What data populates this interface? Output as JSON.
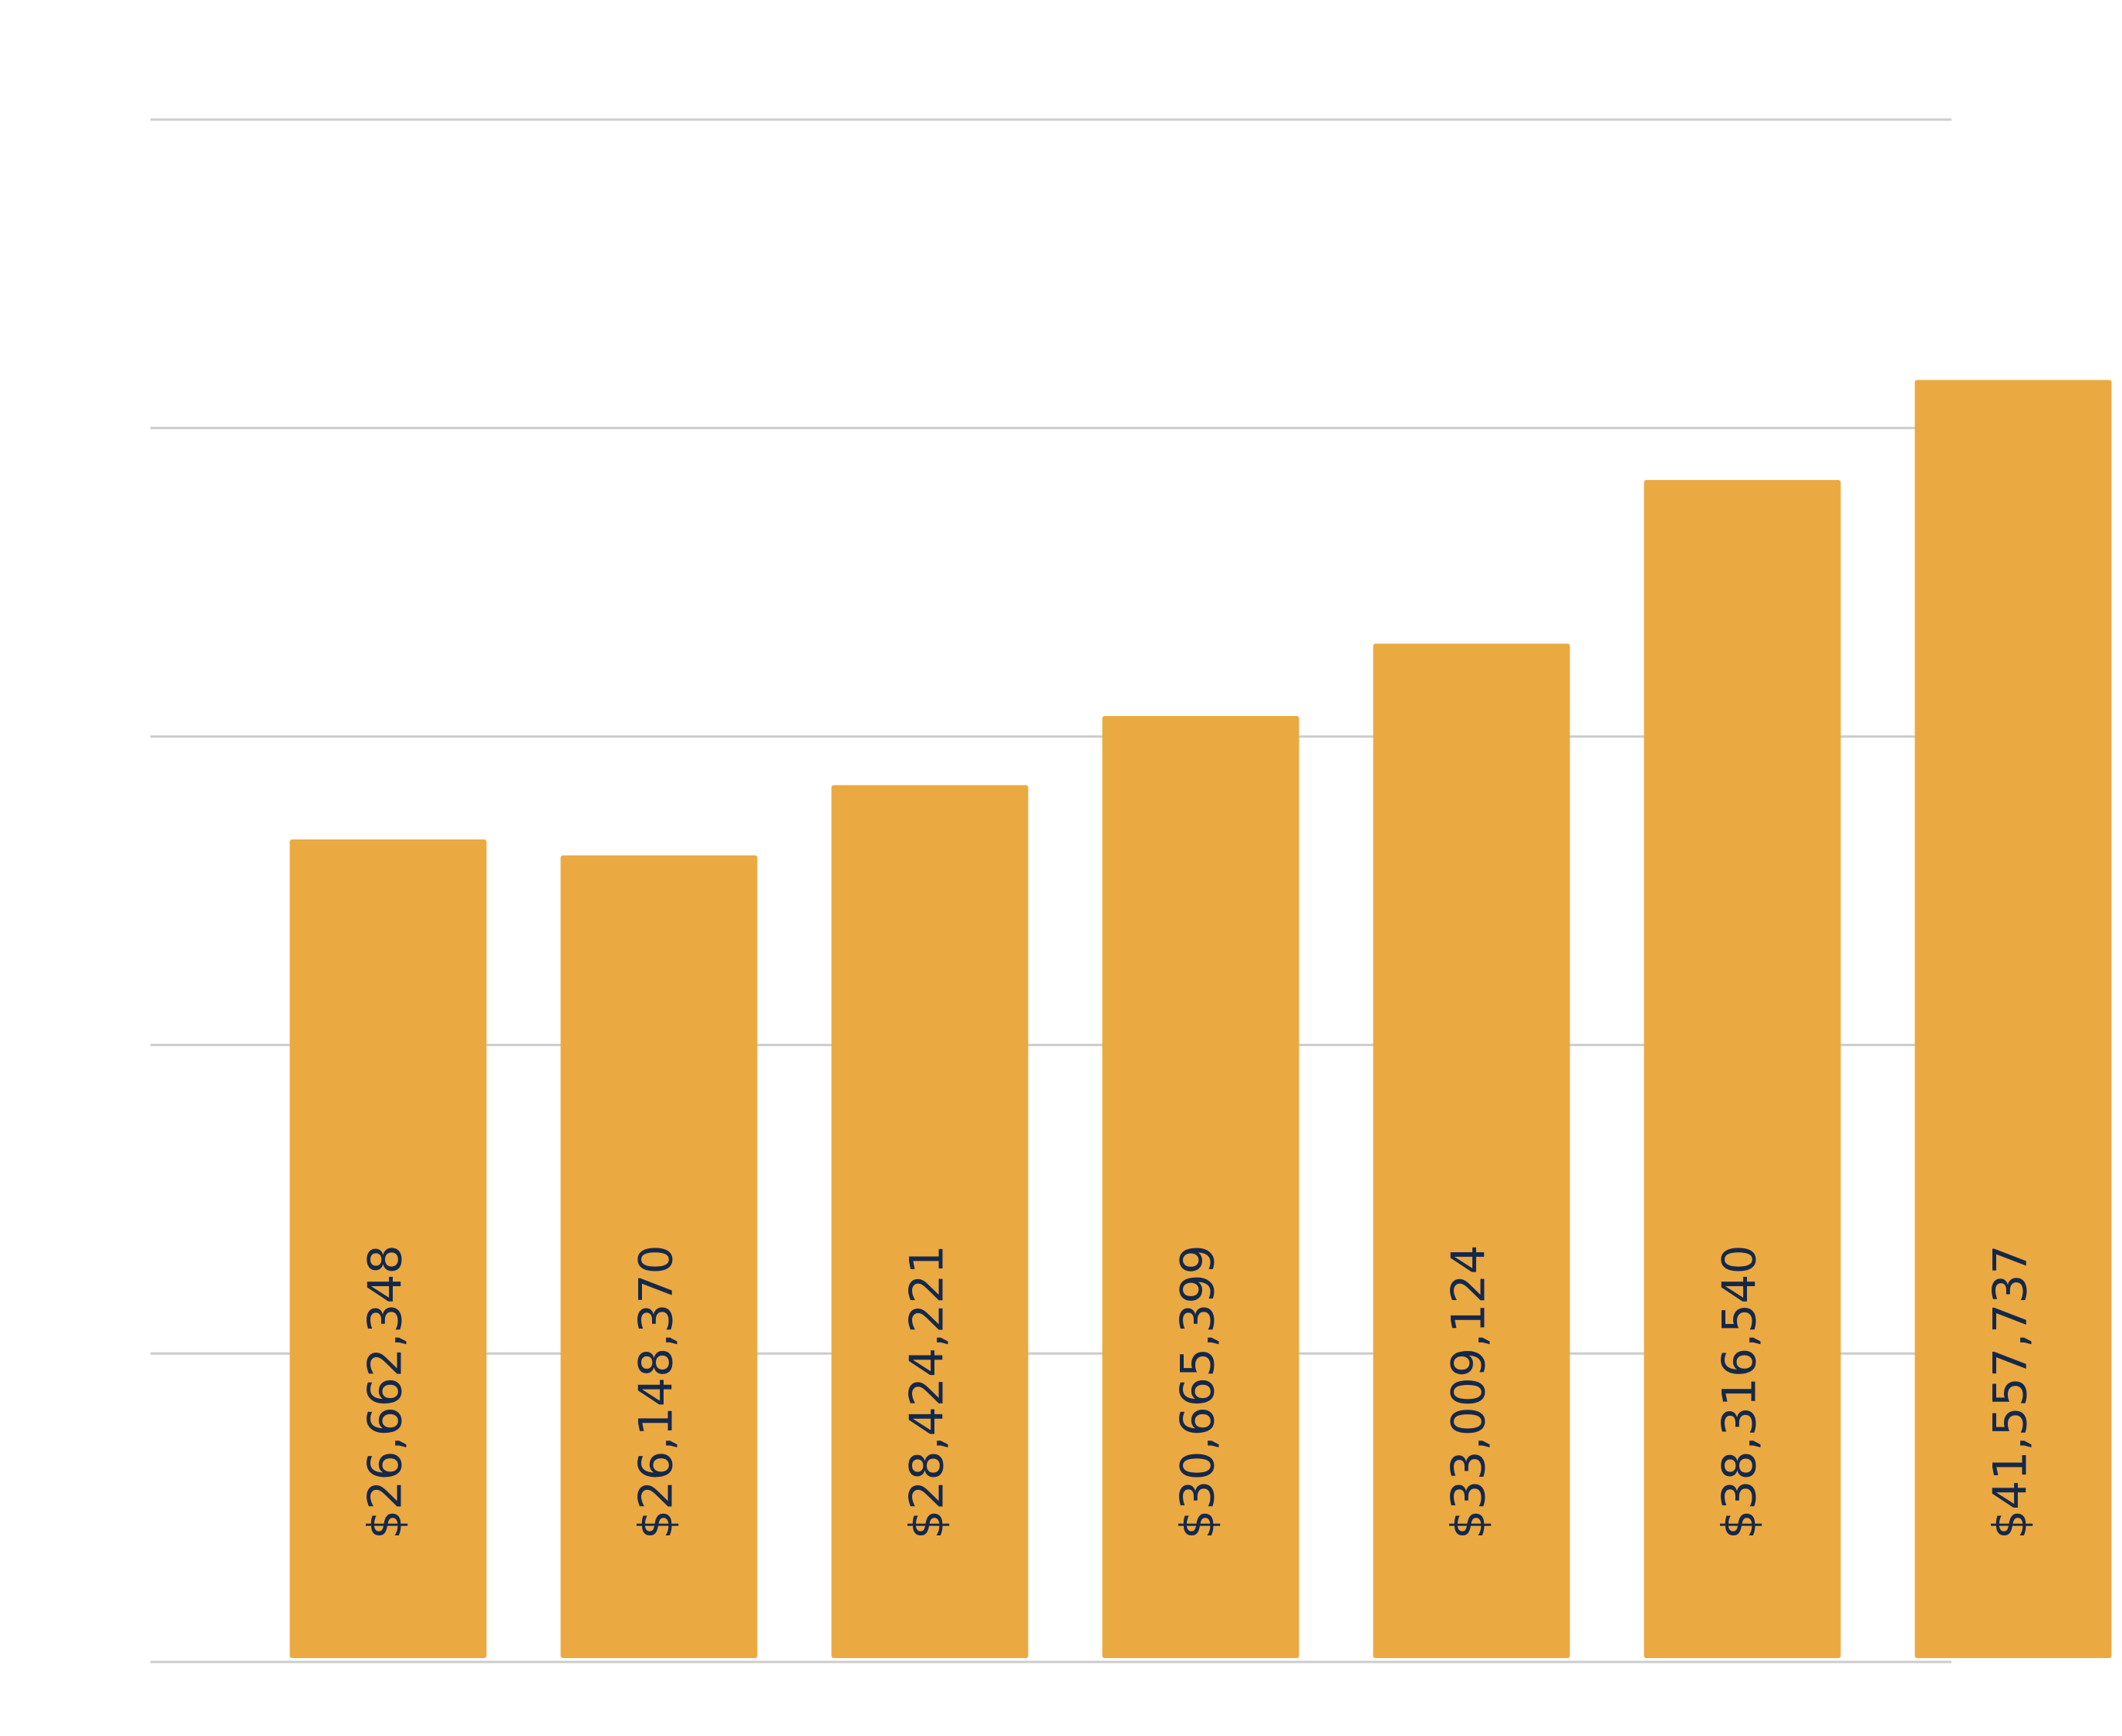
{
  "chart_data": {
    "type": "bar",
    "categories": [
      null,
      null,
      null,
      null,
      null,
      null,
      null
    ],
    "values": [
      26662348,
      26148370,
      28424221,
      30665399,
      33009124,
      38316540,
      41557737
    ],
    "value_labels": [
      "$26,662,348",
      "$26,148,370",
      "$28,424,221",
      "$30,665,399",
      "$33,009,124",
      "$38,316,540",
      "$41,557,737"
    ],
    "color": "#eba942",
    "label_color": "#14284b",
    "ylim": [
      0,
      50000000
    ],
    "yticks": [
      0,
      10000000,
      20000000,
      30000000,
      40000000,
      50000000
    ],
    "grid": true
  }
}
